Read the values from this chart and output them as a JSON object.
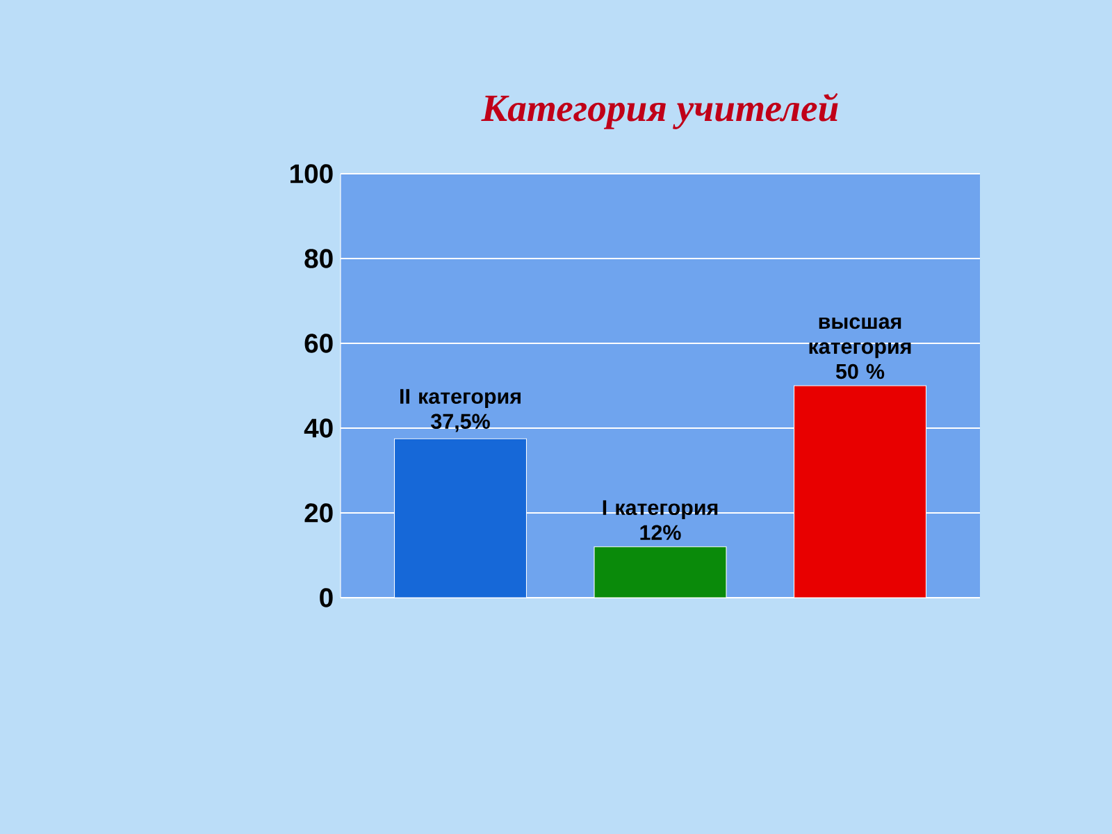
{
  "chart_data": {
    "type": "bar",
    "title": "Категория учителей",
    "categories": [
      null,
      null,
      null
    ],
    "values": [
      37.5,
      12,
      50
    ],
    "colors": [
      "#1668d8",
      "#0a8a0a",
      "#e80000"
    ],
    "value_labels": [
      "II категория 37,5%",
      "I категория 12%",
      "высшая категория 50 %"
    ],
    "ylim": [
      0,
      100
    ],
    "yticks": [
      0,
      20,
      40,
      60,
      80,
      100
    ],
    "grid": "y"
  }
}
